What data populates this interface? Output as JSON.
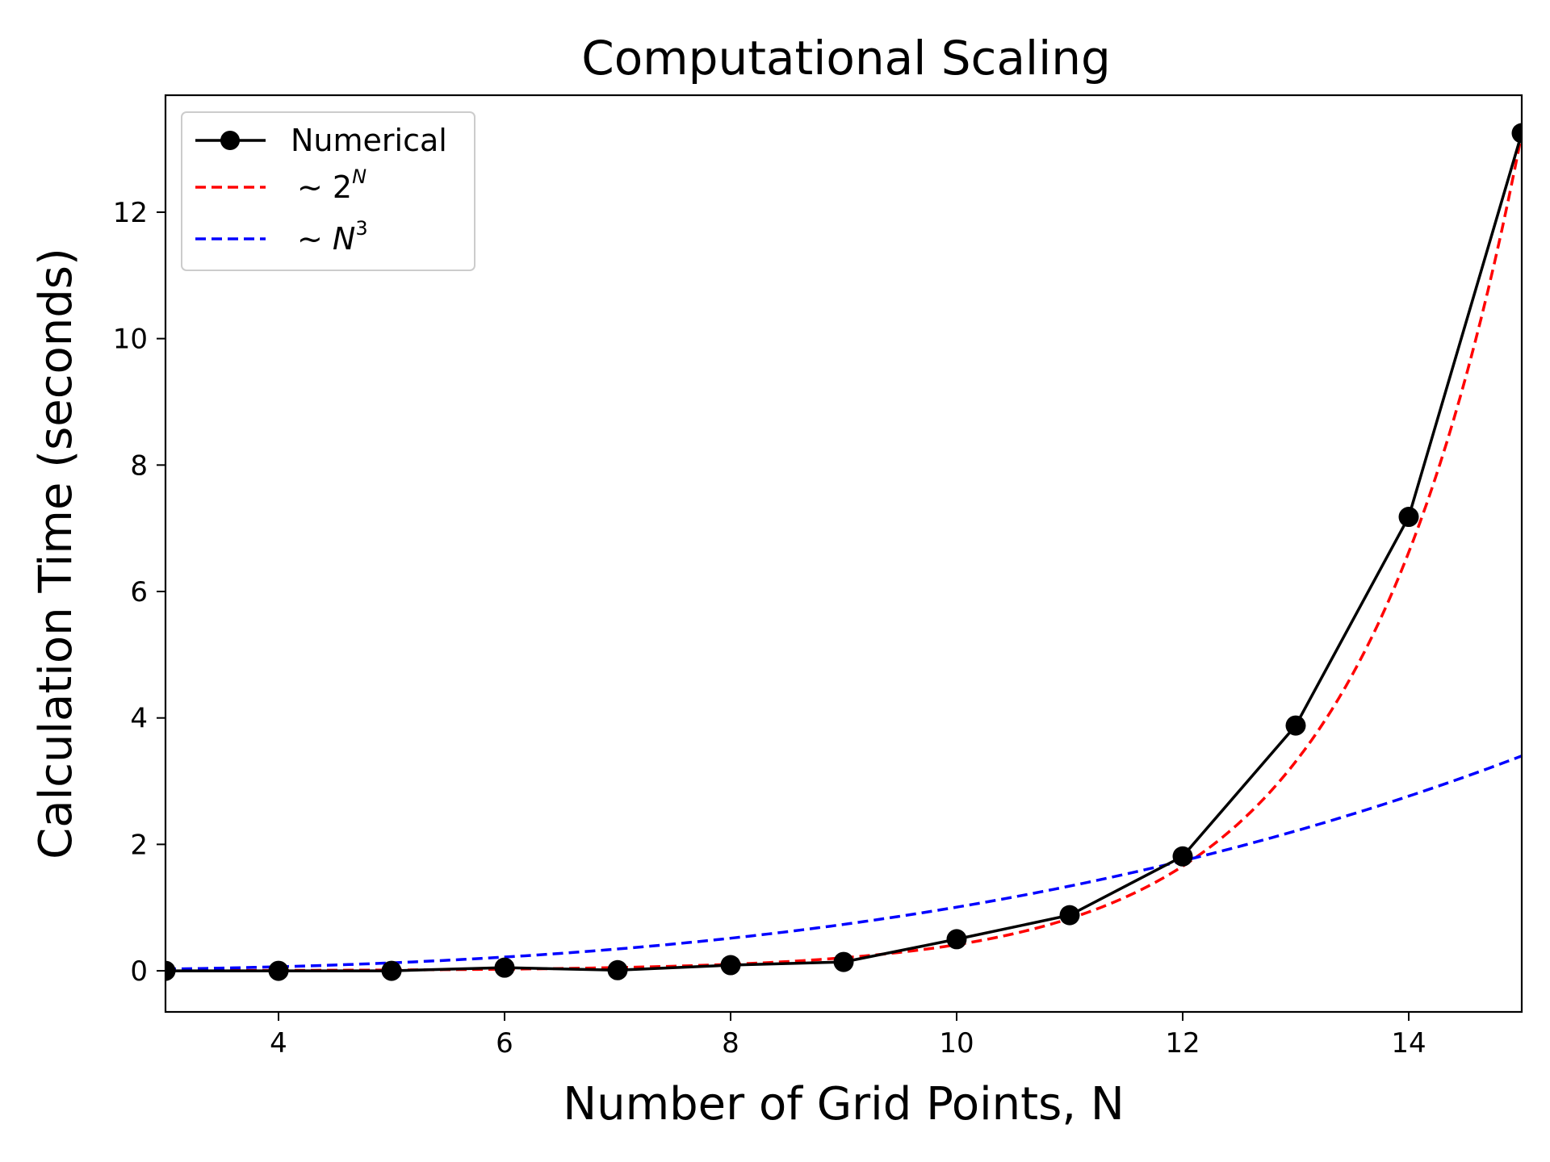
{
  "chart_data": {
    "type": "line",
    "title": "Computational Scaling",
    "xlabel": "Number of Grid Points, N",
    "ylabel": "Calculation Time (seconds)",
    "xlim": [
      3,
      15
    ],
    "ylim": [
      -0.65,
      13.85
    ],
    "xticks": [
      4,
      6,
      8,
      10,
      12,
      14
    ],
    "yticks": [
      0,
      2,
      4,
      6,
      8,
      10,
      12
    ],
    "grid": false,
    "legend_position": "top-left",
    "series": [
      {
        "name": "Numerical",
        "style": "solid-markers",
        "color": "#000000",
        "x": [
          3,
          4,
          5,
          6,
          7,
          8,
          9,
          10,
          11,
          12,
          13,
          14,
          15
        ],
        "y": [
          0.0,
          0.0,
          0.0,
          0.05,
          0.01,
          0.09,
          0.14,
          0.5,
          0.88,
          1.81,
          3.88,
          7.18,
          13.25
        ]
      },
      {
        "name": "~ 2^N",
        "style": "dashed",
        "color": "#ff0000",
        "formula": "2^N",
        "coefficient": 0.000404,
        "x_range": [
          3,
          15
        ]
      },
      {
        "name": "~ N^3",
        "style": "dashed",
        "color": "#0000ff",
        "formula": "N^3",
        "coefficient": 0.001007,
        "x_range": [
          3,
          15
        ]
      }
    ],
    "legend": [
      {
        "prefix": "Numerical",
        "base": "",
        "sup": ""
      },
      {
        "prefix": "~ ",
        "base": "2",
        "sup": "N"
      },
      {
        "prefix": "~ ",
        "base": "N",
        "sup": "3"
      }
    ]
  }
}
